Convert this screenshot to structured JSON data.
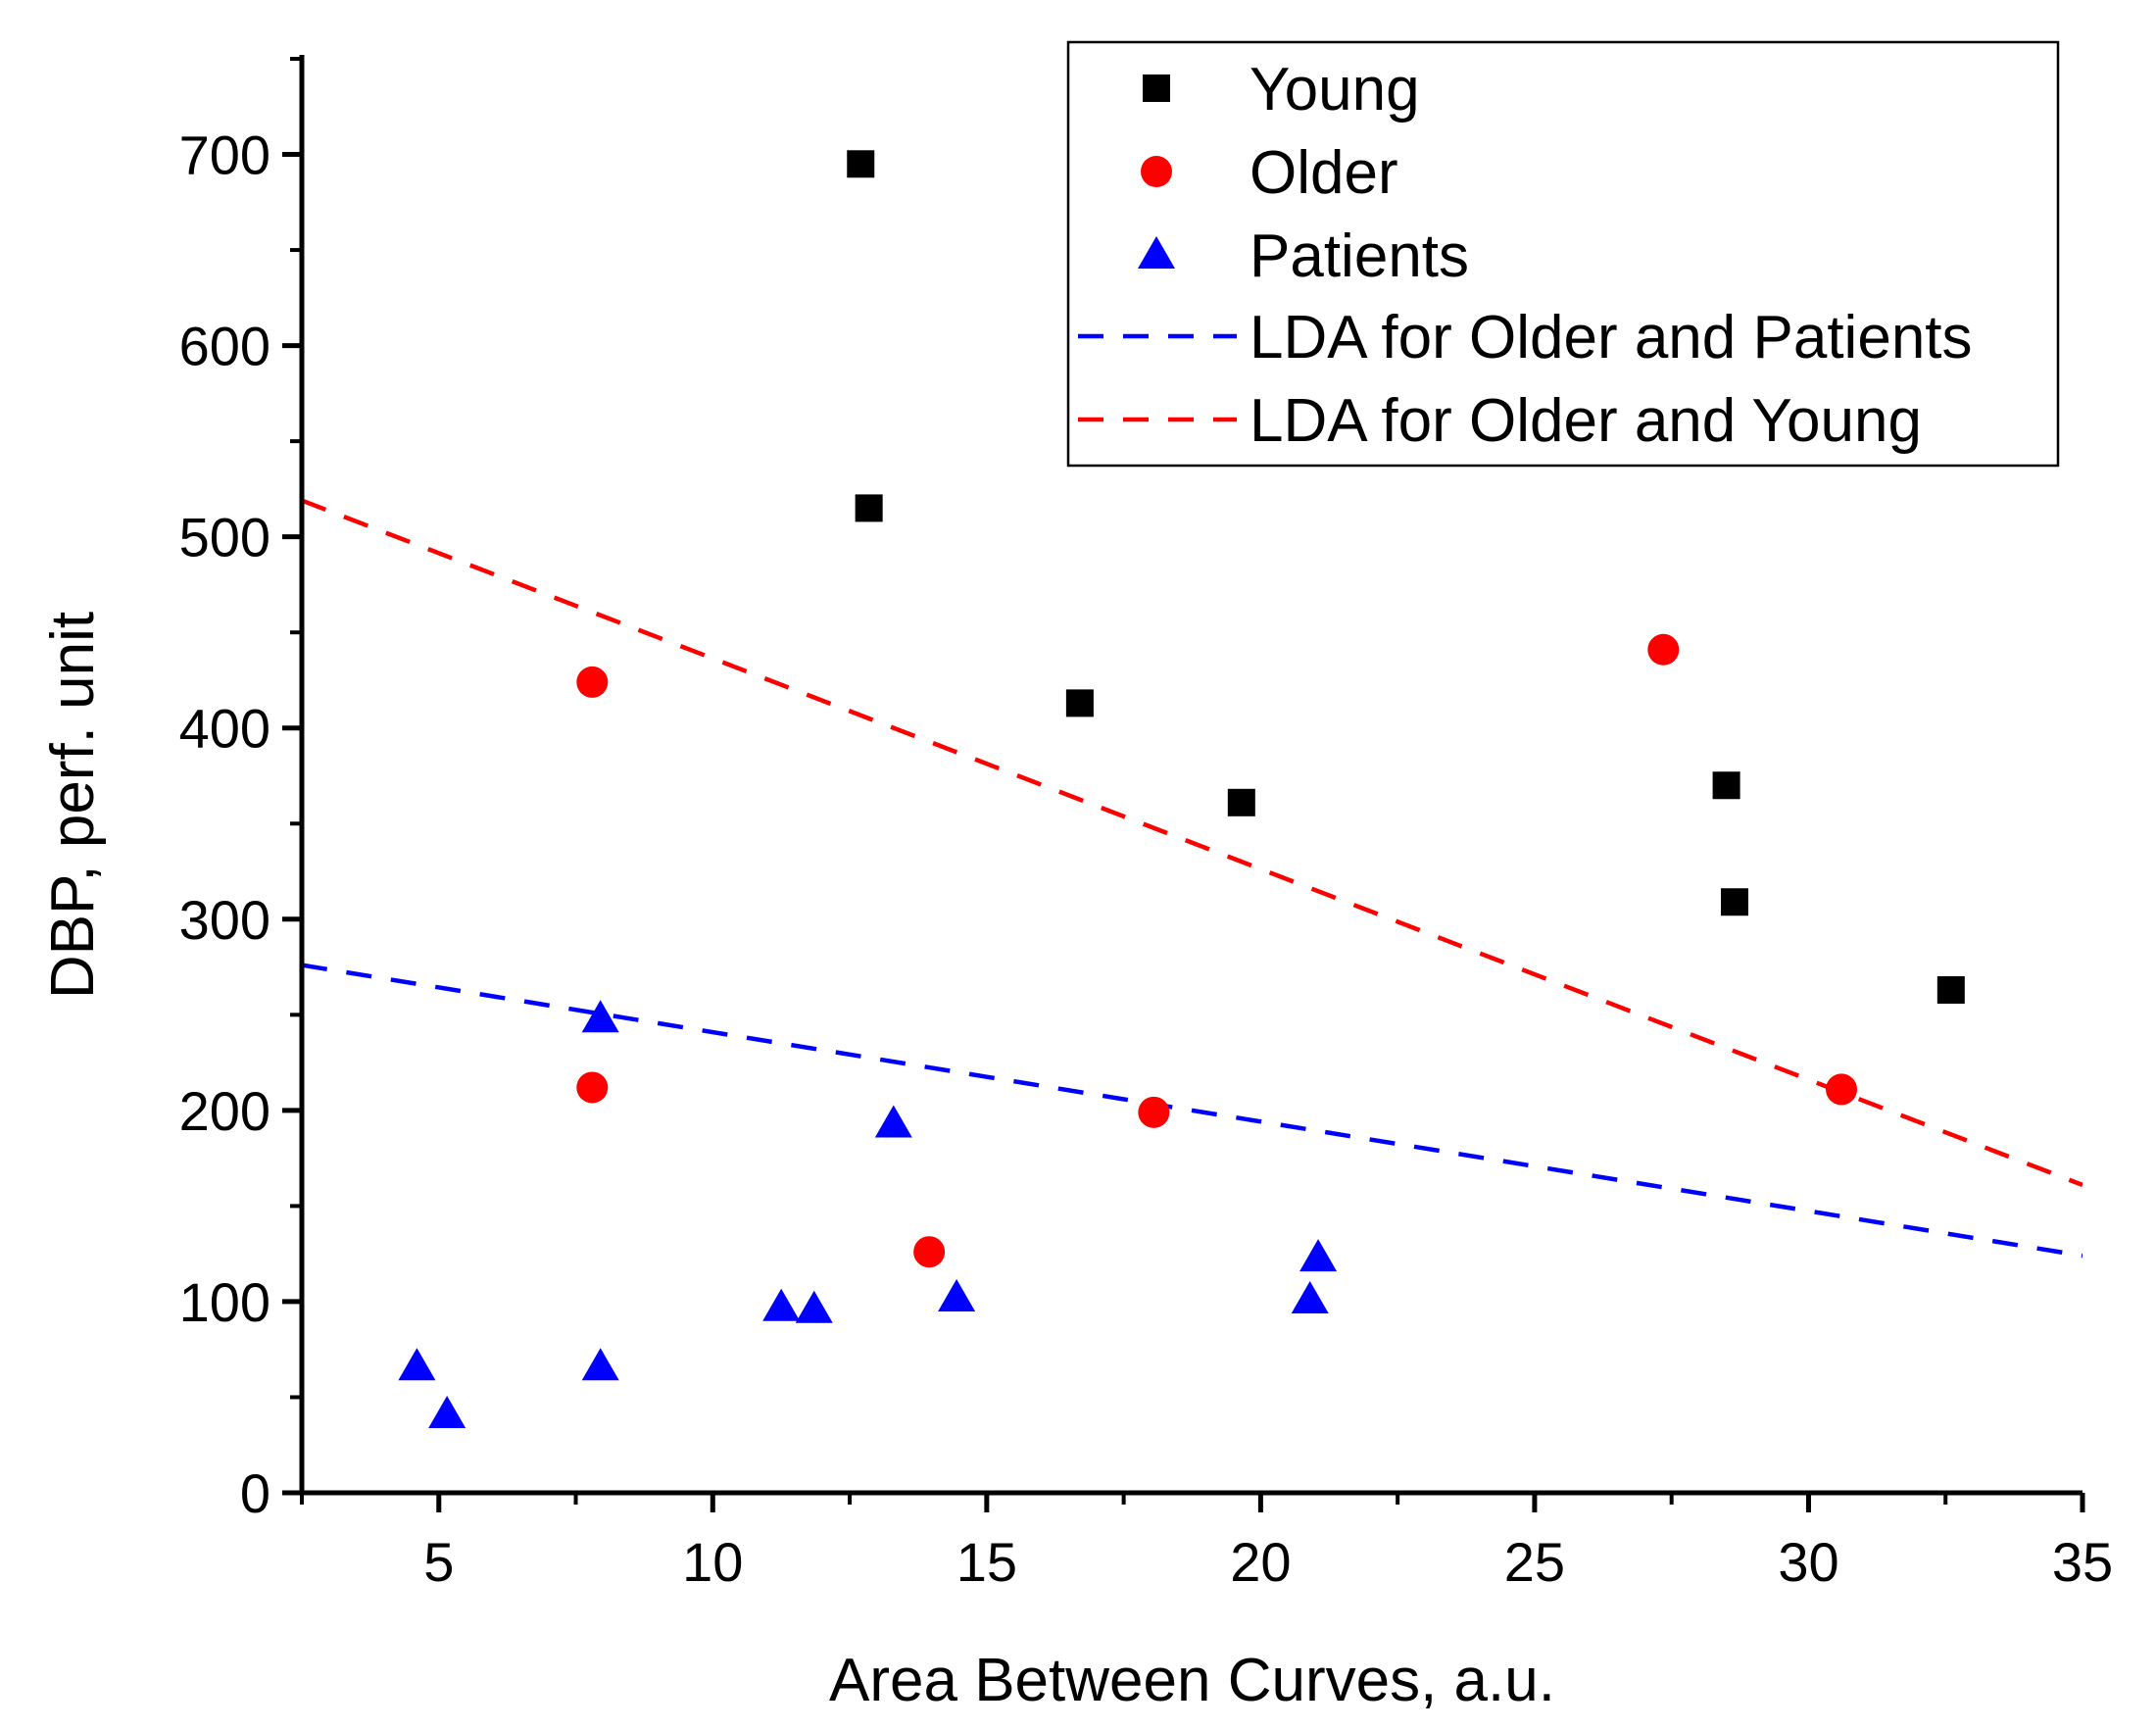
{
  "chart_data": {
    "type": "scatter",
    "title": "",
    "xlabel": "Area Between Curves, a.u.",
    "ylabel": "DBP, perf. unit",
    "xlim": [
      2.5,
      35
    ],
    "ylim": [
      0,
      750
    ],
    "x_ticks": [
      5,
      10,
      15,
      20,
      25,
      30,
      35
    ],
    "y_ticks": [
      0,
      100,
      200,
      300,
      400,
      500,
      600,
      700
    ],
    "x_minor_ticks": [
      2.5,
      7.5,
      12.5,
      17.5,
      22.5,
      27.5,
      32.5
    ],
    "y_minor_ticks": [
      50,
      150,
      250,
      350,
      450,
      550,
      650,
      750
    ],
    "grid": false,
    "legend_position": "top-right",
    "series": [
      {
        "name": "Young",
        "marker": "square",
        "color": "#000000",
        "points": [
          [
            12.7,
            695
          ],
          [
            12.85,
            515
          ],
          [
            16.7,
            413
          ],
          [
            19.65,
            361
          ],
          [
            28.5,
            370
          ],
          [
            28.65,
            309
          ],
          [
            32.6,
            263
          ]
        ]
      },
      {
        "name": "Older",
        "marker": "circle",
        "color": "#ff0000",
        "points": [
          [
            7.8,
            424
          ],
          [
            7.8,
            212
          ],
          [
            13.95,
            126
          ],
          [
            18.05,
            199
          ],
          [
            27.35,
            441
          ],
          [
            30.6,
            211
          ]
        ]
      },
      {
        "name": "Patients",
        "marker": "triangle",
        "color": "#0000ff",
        "points": [
          [
            4.6,
            66
          ],
          [
            5.15,
            41
          ],
          [
            7.95,
            248
          ],
          [
            7.95,
            66
          ],
          [
            11.25,
            97
          ],
          [
            11.85,
            96
          ],
          [
            13.3,
            193
          ],
          [
            14.45,
            102
          ],
          [
            20.9,
            101
          ],
          [
            21.05,
            123
          ]
        ]
      }
    ],
    "lines": [
      {
        "name": "LDA for Older and Patients",
        "style": "dashed",
        "color": "#0000ff",
        "x": [
          2.5,
          35
        ],
        "y": [
          276,
          124
        ]
      },
      {
        "name": "LDA for Older and Young",
        "style": "dashed",
        "color": "#ff0000",
        "x": [
          2.5,
          35
        ],
        "y": [
          519,
          161
        ]
      }
    ]
  }
}
